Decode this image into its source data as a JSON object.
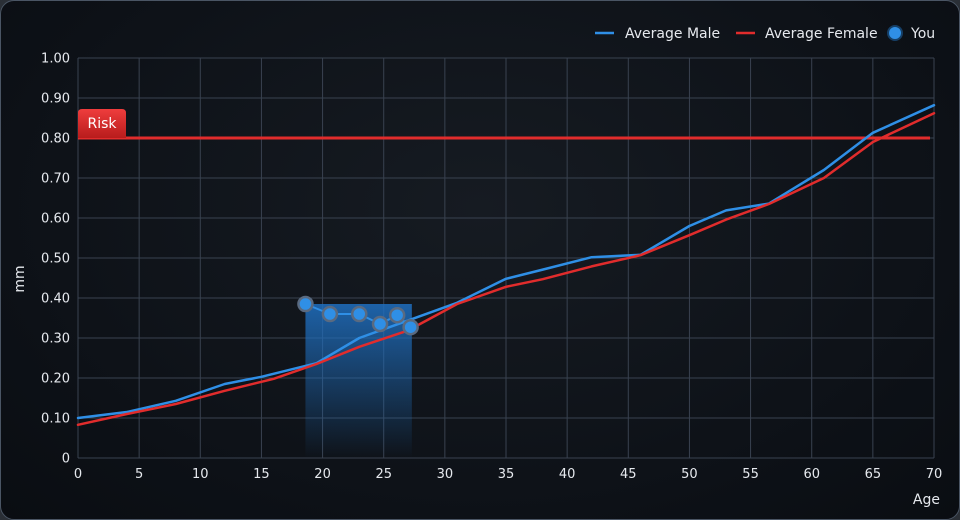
{
  "chart_data": {
    "type": "line",
    "xlabel": "Age",
    "ylabel": "mm",
    "xlim": [
      0,
      70
    ],
    "ylim": [
      0,
      1.0
    ],
    "x_ticks": [
      0,
      5,
      10,
      15,
      20,
      25,
      30,
      35,
      40,
      45,
      50,
      55,
      60,
      65,
      70
    ],
    "x_tick_labels": [
      "0",
      "5",
      "10",
      "15",
      "20",
      "25",
      "30",
      "35",
      "40",
      "45",
      "50",
      "55",
      "60",
      "65",
      "70"
    ],
    "y_ticks": [
      0,
      0.1,
      0.2,
      0.3,
      0.4,
      0.5,
      0.6,
      0.7,
      0.8,
      0.9,
      1.0
    ],
    "y_tick_labels": [
      "0",
      "0.10",
      "0.20",
      "0.30",
      "0.40",
      "0.50",
      "0.60",
      "0.70",
      "0.80",
      "0.90",
      "1.00"
    ],
    "grid": true,
    "legend_position": "top-right",
    "series": [
      {
        "name": "Average Male",
        "color": "#2f8fe6",
        "x": [
          0,
          4,
          8,
          12,
          15,
          19.5,
          23,
          27,
          31,
          35,
          38,
          42,
          46,
          50,
          53,
          56.5,
          61,
          65,
          70
        ],
        "y": [
          0.1,
          0.115,
          0.143,
          0.185,
          0.203,
          0.237,
          0.3,
          0.344,
          0.388,
          0.448,
          0.471,
          0.502,
          0.508,
          0.58,
          0.619,
          0.636,
          0.72,
          0.813,
          0.882
        ]
      },
      {
        "name": "Average Female",
        "color": "#e12c2c",
        "x": [
          0,
          4,
          8,
          12,
          16,
          19.5,
          23,
          27,
          31,
          35,
          38,
          42,
          46,
          50,
          53,
          56.5,
          61,
          65,
          70
        ],
        "y": [
          0.083,
          0.11,
          0.135,
          0.168,
          0.198,
          0.235,
          0.278,
          0.319,
          0.385,
          0.428,
          0.447,
          0.479,
          0.507,
          0.557,
          0.596,
          0.635,
          0.7,
          0.79,
          0.862
        ]
      },
      {
        "name": "You",
        "color": "#2f8fe6",
        "x": [
          18.6,
          20.6,
          23.0,
          24.7,
          26.1,
          27.2
        ],
        "y": [
          0.385,
          0.36,
          0.36,
          0.335,
          0.357,
          0.327
        ]
      }
    ],
    "risk": {
      "label": "Risk",
      "value": 0.8,
      "color": "#e12c2c"
    },
    "highlight_range": {
      "x": [
        18.6,
        27.3
      ],
      "color": "#1f6fc0"
    }
  }
}
